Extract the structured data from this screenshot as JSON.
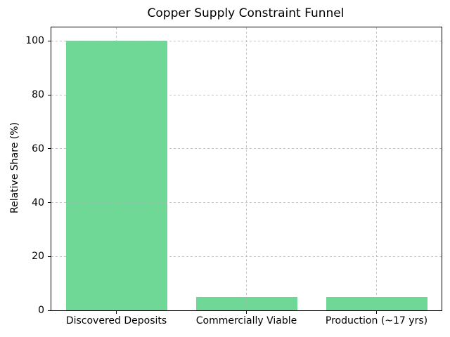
{
  "chart_data": {
    "type": "bar",
    "title": "Copper Supply Constraint Funnel",
    "xlabel": "",
    "ylabel": "Relative Share (%)",
    "categories": [
      "Discovered Deposits",
      "Commercially Viable",
      "Production (~17 yrs)"
    ],
    "values": [
      100,
      5,
      5
    ],
    "yticks": [
      0,
      20,
      40,
      60,
      80,
      100
    ],
    "ylim": [
      0,
      105
    ],
    "bar_color": "#6fd897",
    "grid": "dashed, both axes, drawn over bars",
    "grid_color": "#b4b4b4",
    "spine_color": "#000000",
    "background_color": "#ffffff",
    "legend": "none"
  }
}
